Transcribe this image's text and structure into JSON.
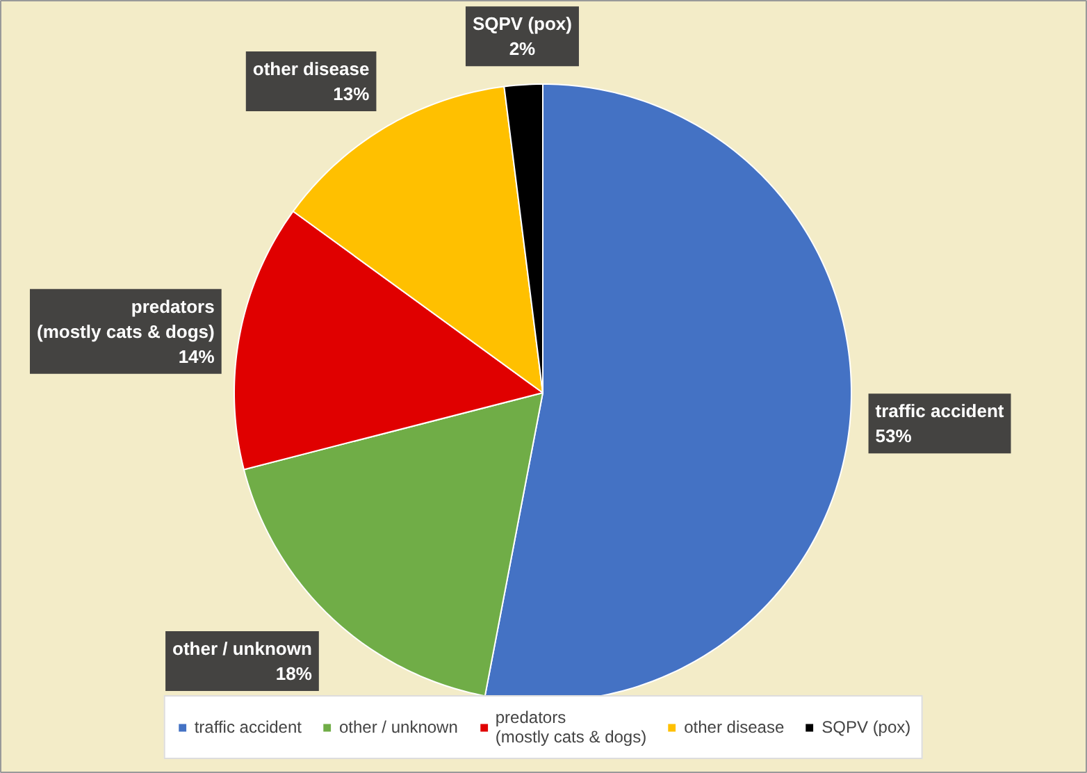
{
  "chart_data": {
    "type": "pie",
    "categories": [
      "traffic accident",
      "other / unknown",
      "predators\n(mostly cats & dogs)",
      "other disease",
      "SQPV (pox)"
    ],
    "values": [
      53,
      18,
      14,
      13,
      2
    ],
    "colors": [
      "#4472c4",
      "#70ad47",
      "#e00000",
      "#ffc000",
      "#000000"
    ],
    "value_labels": [
      "53%",
      "18%",
      "14%",
      "13%",
      "2%"
    ],
    "legend": "bottom"
  }
}
